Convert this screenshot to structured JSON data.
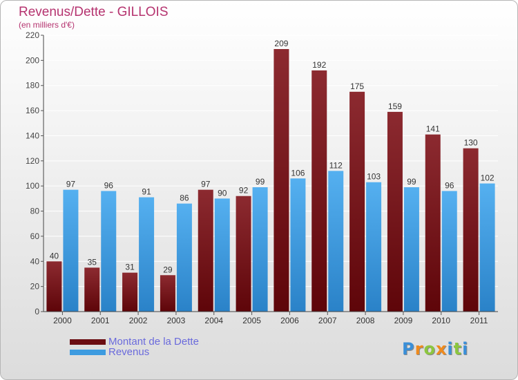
{
  "header": {
    "title": "Revenus/Dette - GILLOIS",
    "subtitle": "(en milliers d'€)"
  },
  "legend": {
    "items": [
      {
        "label": "Montant de la Dette",
        "color": "#6b0d12"
      },
      {
        "label": "Revenus",
        "color": "#3d9be0"
      }
    ]
  },
  "logo": {
    "text": "Proxiti",
    "colors": [
      "#3a8fd8",
      "#f08a1c",
      "#8cc63f",
      "#f08a1c",
      "#3a8fd8",
      "#8cc63f",
      "#3a8fd8"
    ]
  },
  "chart_data": {
    "type": "bar",
    "title": "Revenus/Dette - GILLOIS",
    "ylabel": "(en milliers d'€)",
    "xlabel": "",
    "ylim": [
      0,
      220
    ],
    "yticks": [
      0,
      20,
      40,
      60,
      80,
      100,
      120,
      140,
      160,
      180,
      200,
      220
    ],
    "grid": true,
    "categories": [
      "2000",
      "2001",
      "2002",
      "2003",
      "2004",
      "2005",
      "2006",
      "2007",
      "2008",
      "2009",
      "2010",
      "2011"
    ],
    "series": [
      {
        "name": "Montant de la Dette",
        "color": "#7a1a1f",
        "values": [
          40,
          35,
          31,
          29,
          97,
          92,
          209,
          192,
          175,
          159,
          141,
          130
        ]
      },
      {
        "name": "Revenus",
        "color": "#4aa6e8",
        "values": [
          97,
          96,
          91,
          86,
          90,
          99,
          106,
          112,
          103,
          99,
          96,
          102
        ]
      }
    ]
  }
}
